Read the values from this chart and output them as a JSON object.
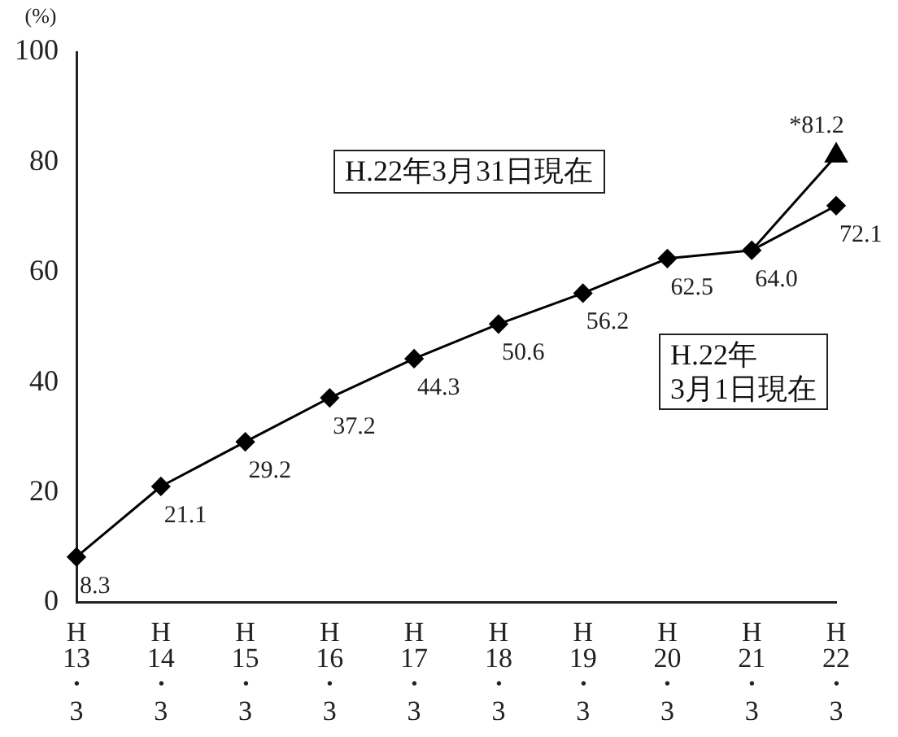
{
  "chart_data": {
    "type": "line",
    "ylabel": "(%)",
    "categories": [
      "H\n13\n・\n3",
      "H\n14\n・\n3",
      "H\n15\n・\n3",
      "H\n16\n・\n3",
      "H\n17\n・\n3",
      "H\n18\n・\n3",
      "H\n19\n・\n3",
      "H\n20\n・\n3",
      "H\n21\n・\n3",
      "H\n22\n・\n3"
    ],
    "series": [
      {
        "color": "#000000",
        "marker": "diamond",
        "values": [
          8.3,
          21.1,
          29.2,
          37.2,
          44.3,
          50.6,
          56.2,
          62.5,
          64.0,
          72.1
        ],
        "value_labels": [
          "8.3",
          "21.1",
          "29.2",
          "37.2",
          "44.3",
          "50.6",
          "56.2",
          "62.5",
          "64.0",
          "72.1"
        ]
      },
      {
        "color": "#000000",
        "marker": "triangle",
        "values": [
          null,
          null,
          null,
          null,
          null,
          null,
          null,
          null,
          64.0,
          81.2
        ],
        "value_labels": [
          null,
          null,
          null,
          null,
          null,
          null,
          null,
          null,
          null,
          "*81.2"
        ]
      }
    ],
    "annotations": [
      "H.22年3月31日現在",
      "H.22年\n3月1日現在"
    ],
    "ylim": [
      0,
      100
    ],
    "yticks": [
      0,
      20,
      40,
      60,
      80,
      100
    ],
    "grid": false,
    "legend": false,
    "line_style": "solid"
  }
}
